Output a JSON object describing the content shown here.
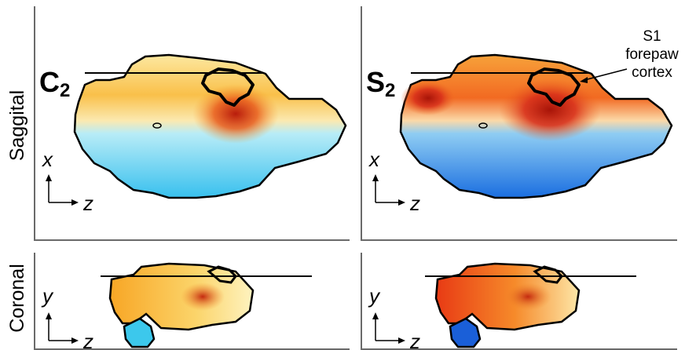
{
  "row_labels": {
    "sagittal": "Saggital",
    "coronal": "Coronal"
  },
  "panels": {
    "c2_sagittal": {
      "label_main": "C",
      "label_sub": "2",
      "axis_vertical": "x",
      "axis_horizontal": "z"
    },
    "s2_sagittal": {
      "label_main": "S",
      "label_sub": "2",
      "axis_vertical": "x",
      "axis_horizontal": "z"
    },
    "c2_coronal": {
      "axis_vertical": "y",
      "axis_horizontal": "z"
    },
    "s2_coronal": {
      "axis_vertical": "y",
      "axis_horizontal": "z"
    }
  },
  "annotation": {
    "line1": "S1",
    "line2": "forepaw",
    "line3": "cortex"
  },
  "colors": {
    "hot_red": "#d42a10",
    "orange": "#f5a020",
    "yellow": "#fde68a",
    "cool_blue": "#1e6fe0",
    "light_cyan": "#7fd8f5",
    "outline": "#000000",
    "frame": "#555555"
  }
}
